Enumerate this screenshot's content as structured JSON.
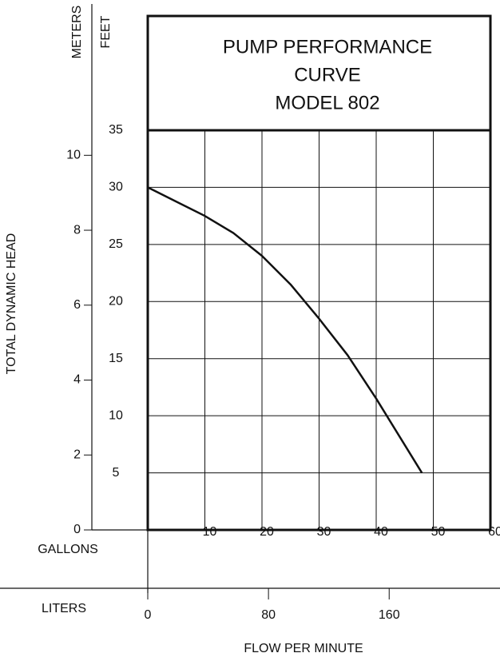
{
  "chart_data": {
    "type": "line",
    "title": [
      "PUMP PERFORMANCE",
      "CURVE",
      "MODEL 802"
    ],
    "y_label": "FEET",
    "y2_label": "METERS",
    "y_axis_title": "TOTAL DYNAMIC HEAD",
    "x_label": "GALLONS",
    "x2_label": "LITERS",
    "x_axis_title": "FLOW PER MINUTE",
    "x": [
      0,
      10,
      15,
      20,
      25,
      30,
      35,
      40,
      48
    ],
    "series": [
      {
        "color": "#111111",
        "values": [
          30,
          27.5,
          26,
          24,
          21.5,
          18.5,
          15.3,
          11.5,
          5
        ]
      }
    ],
    "xlim": [
      0,
      60
    ],
    "xticks": [
      10,
      20,
      30,
      40,
      50,
      60
    ],
    "ylim": [
      0,
      35
    ],
    "yticks": [
      5,
      10,
      15,
      20,
      25,
      30,
      35
    ],
    "y2lim": [
      0,
      10.668
    ],
    "y2ticks": [
      0,
      2,
      4,
      6,
      8,
      10
    ],
    "x2lim": [
      0,
      227.1
    ],
    "x2ticks": [
      0,
      80,
      160
    ],
    "grid": true
  }
}
